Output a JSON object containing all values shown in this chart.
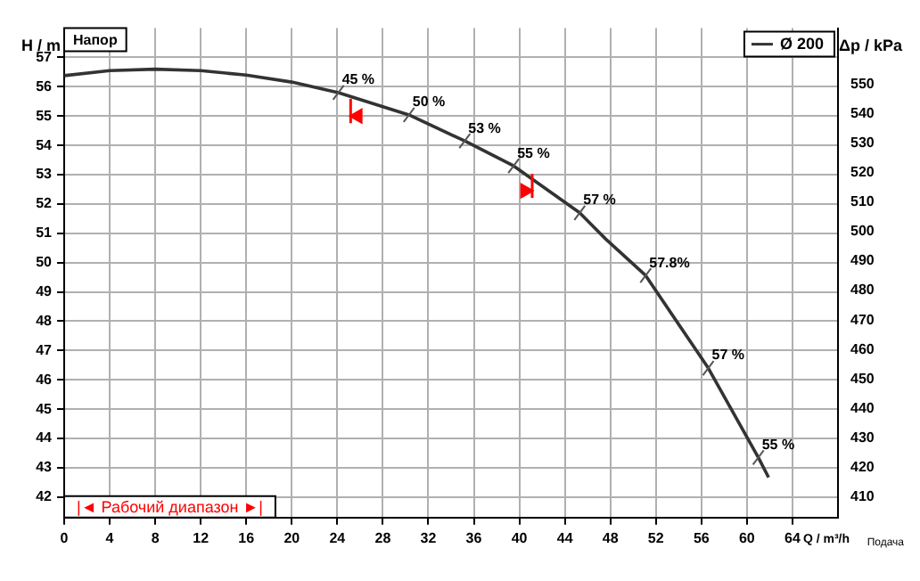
{
  "chart_data": {
    "type": "line",
    "xlabel": "Q / m³/h",
    "ylabel": "H / m",
    "y2label": "Δp / kPa",
    "x": [
      0,
      4,
      8,
      12,
      16,
      20,
      24.1,
      30.3,
      35.2,
      39.5,
      45.3,
      47.6,
      51.1,
      56.6,
      61,
      61.9
    ],
    "series": [
      {
        "name": "Ø 200",
        "color": "#333333",
        "values": [
          56.38,
          56.55,
          56.6,
          56.55,
          56.4,
          56.16,
          55.8,
          55.04,
          54.15,
          53.3,
          51.7,
          50.8,
          49.56,
          46.4,
          43.35,
          42.67
        ]
      },
      {
        "type": "scatter",
        "marker": "triangle",
        "color": "#ff0000",
        "x": [
          25.8,
          40.5
        ],
        "values": [
          55.0,
          52.45
        ]
      }
    ],
    "xlim": [
      0,
      68
    ],
    "xticks": [
      0,
      4,
      8,
      12,
      16,
      20,
      24,
      28,
      32,
      36,
      40,
      44,
      48,
      52,
      56,
      60,
      64
    ],
    "ylim": [
      41.3,
      58
    ],
    "yticks": [
      42,
      43,
      44,
      45,
      46,
      47,
      48,
      49,
      50,
      51,
      52,
      53,
      54,
      55,
      56,
      57
    ],
    "y2lim": [
      403,
      569
    ],
    "y2ticks": [
      410,
      420,
      430,
      440,
      450,
      460,
      470,
      480,
      490,
      500,
      510,
      520,
      530,
      540,
      550
    ],
    "grid": true,
    "legend": "top right",
    "line_style": "solid",
    "annotations": [
      {
        "text": "45 %",
        "x": 24.1,
        "y": 55.8
      },
      {
        "text": "50 %",
        "x": 30.3,
        "y": 55.04
      },
      {
        "text": "53 %",
        "x": 35.2,
        "y": 54.15
      },
      {
        "text": "55 %",
        "x": 39.5,
        "y": 53.3
      },
      {
        "text": "57 %",
        "x": 45.3,
        "y": 51.7
      },
      {
        "text": "57.8%",
        "x": 51.1,
        "y": 49.56
      },
      {
        "text": "57 %",
        "x": 56.6,
        "y": 46.4
      },
      {
        "text": "55 %",
        "x": 61,
        "y": 43.35
      },
      "Напор",
      "|◄ Рабочий диапазон ►|",
      "Подача"
    ]
  }
}
